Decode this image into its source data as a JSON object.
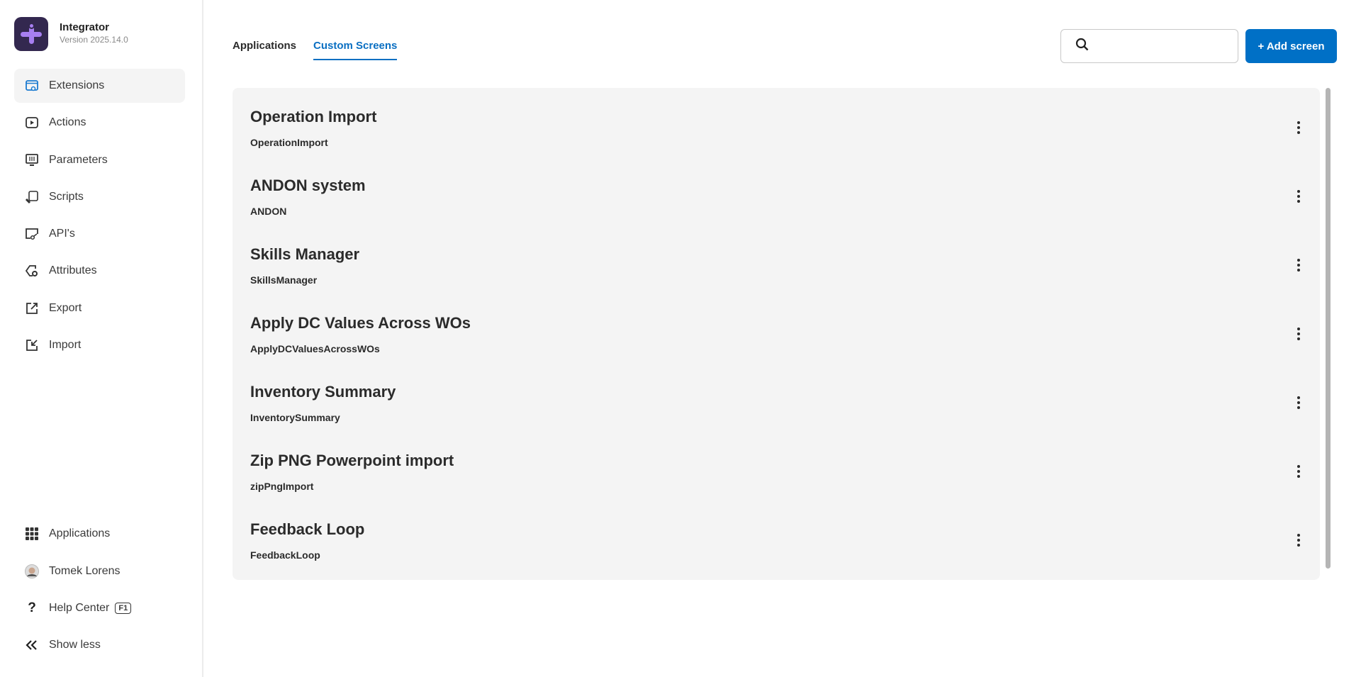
{
  "app": {
    "title": "Integrator",
    "version": "Version 2025.14.0"
  },
  "sidebar": {
    "items": [
      {
        "label": "Extensions",
        "icon": "extensions-icon",
        "active": true
      },
      {
        "label": "Actions",
        "icon": "play-icon"
      },
      {
        "label": "Parameters",
        "icon": "parameters-icon"
      },
      {
        "label": "Scripts",
        "icon": "scripts-icon"
      },
      {
        "label": "API's",
        "icon": "api-icon"
      },
      {
        "label": "Attributes",
        "icon": "attributes-icon"
      },
      {
        "label": "Export",
        "icon": "export-icon"
      },
      {
        "label": "Import",
        "icon": "import-icon"
      }
    ],
    "bottom": {
      "applications": "Applications",
      "user": "Tomek Lorens",
      "help": "Help Center",
      "help_key": "F1",
      "show_less": "Show less"
    }
  },
  "tabs": [
    {
      "label": "Applications"
    },
    {
      "label": "Custom Screens",
      "active": true
    }
  ],
  "search": {
    "value": "",
    "placeholder": ""
  },
  "toolbar": {
    "add_label": "+ Add screen"
  },
  "colors": {
    "accent": "#0070c6",
    "logo_bg": "#33284f",
    "logo_fg": "#a77ff0"
  },
  "screens": [
    {
      "title": "Operation Import",
      "name": "OperationImport"
    },
    {
      "title": "ANDON system",
      "name": "ANDON"
    },
    {
      "title": "Skills Manager",
      "name": "SkillsManager"
    },
    {
      "title": "Apply DC Values Across WOs",
      "name": "ApplyDCValuesAcrossWOs"
    },
    {
      "title": "Inventory Summary",
      "name": "InventorySummary"
    },
    {
      "title": "Zip PNG Powerpoint import",
      "name": "zipPngImport"
    },
    {
      "title": "Feedback Loop",
      "name": "FeedbackLoop"
    }
  ]
}
